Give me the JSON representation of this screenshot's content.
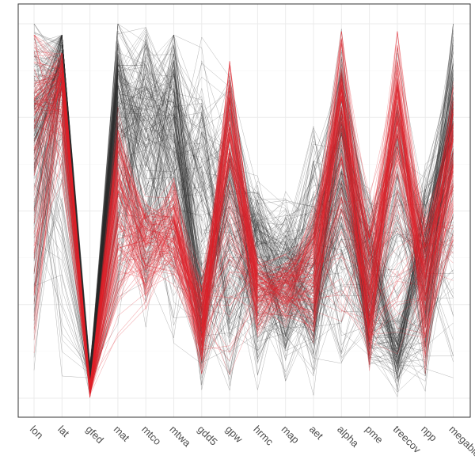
{
  "chart_data": {
    "type": "parallel-coordinates",
    "title": "",
    "xlabel": "",
    "ylabel": "",
    "ylim": [
      0,
      1
    ],
    "grid": true,
    "legend": "none",
    "variables": [
      "lon",
      "lat",
      "gfed",
      "mat",
      "mtco",
      "mtwa",
      "gdd5",
      "gpw",
      "hrmc",
      "map",
      "aet",
      "alpha",
      "pme",
      "treecov",
      "npp",
      "megabiome"
    ],
    "series": [
      {
        "color": "#2a2a2a",
        "line_count": 220,
        "profile_min": [
          0.0,
          0.02,
          0.0,
          0.1,
          0.15,
          0.1,
          0.0,
          0.0,
          0.0,
          0.0,
          0.0,
          0.0,
          0.05,
          0.0,
          0.0,
          0.0
        ],
        "profile_max": [
          1.0,
          0.97,
          0.1,
          1.0,
          1.0,
          0.97,
          0.98,
          0.92,
          0.6,
          0.58,
          0.75,
          1.0,
          0.6,
          1.0,
          0.65,
          1.0
        ],
        "profile_mean": [
          0.55,
          0.8,
          0.03,
          0.62,
          0.6,
          0.6,
          0.2,
          0.35,
          0.3,
          0.25,
          0.22,
          0.45,
          0.2,
          0.12,
          0.25,
          0.55
        ]
      },
      {
        "color": "#e0232a",
        "line_count": 140,
        "profile_min": [
          0.05,
          0.55,
          0.0,
          0.12,
          0.22,
          0.3,
          0.05,
          0.0,
          0.15,
          0.18,
          0.12,
          0.15,
          0.05,
          0.0,
          0.05,
          0.25
        ],
        "profile_max": [
          0.97,
          0.92,
          0.05,
          0.8,
          0.55,
          0.6,
          0.35,
          0.9,
          0.4,
          0.4,
          0.55,
          0.98,
          0.55,
          0.98,
          0.55,
          0.85
        ],
        "profile_mean": [
          0.6,
          0.82,
          0.01,
          0.38,
          0.35,
          0.4,
          0.15,
          0.55,
          0.25,
          0.27,
          0.28,
          0.65,
          0.2,
          0.6,
          0.25,
          0.55
        ]
      }
    ]
  }
}
